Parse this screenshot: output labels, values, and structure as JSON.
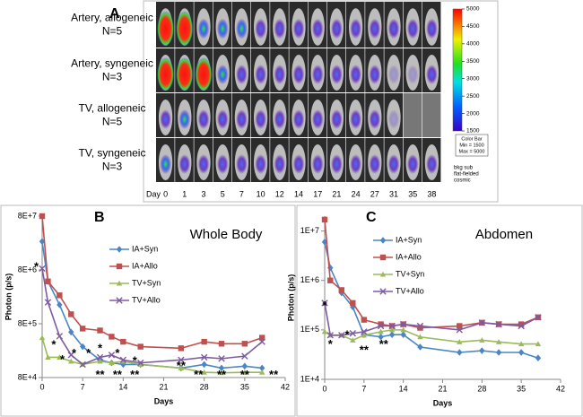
{
  "panel_a": {
    "label": "A",
    "rows": [
      {
        "lines": [
          "Artery, allogeneic",
          "N=5"
        ]
      },
      {
        "lines": [
          "Artery, syngeneic",
          "N=3"
        ]
      },
      {
        "lines": [
          "TV, allogeneic",
          "N=5"
        ]
      },
      {
        "lines": [
          "TV, syngeneic",
          "N=3"
        ]
      }
    ],
    "day_label": "Day",
    "days": [
      0,
      1,
      3,
      5,
      7,
      10,
      12,
      14,
      17,
      21,
      24,
      27,
      31,
      35,
      38
    ],
    "colorbar": {
      "lim": [
        1500,
        5000
      ],
      "ticks": [
        5000,
        4500,
        4000,
        3500,
        3000,
        2500,
        2000,
        1500
      ],
      "box_lines": [
        "Color Bar",
        "Min = 1500",
        "Max = 5000"
      ],
      "notes": [
        "bkg sub",
        "flat-fielded",
        "cosmic"
      ]
    }
  },
  "chart_data": [
    {
      "type": "line",
      "panel": "B",
      "title": "Whole Body",
      "xlabel": "Days",
      "ylabel": "Photon (p/s)",
      "log_y": true,
      "legend": "upper-center",
      "x": [
        0,
        1,
        3,
        5,
        7,
        10,
        12,
        14,
        17,
        24,
        28,
        31,
        35,
        38
      ],
      "xlim": [
        0,
        42
      ],
      "xticks": [
        0,
        7,
        14,
        21,
        28,
        35,
        42
      ],
      "ylim": [
        80000,
        80000000
      ],
      "yticks": [
        {
          "value": 80000,
          "label": "8E+4"
        },
        {
          "value": 800000,
          "label": "8E+5"
        },
        {
          "value": 8000000,
          "label": "8E+6"
        },
        {
          "value": 80000000,
          "label": "8E+7"
        }
      ],
      "series": [
        {
          "name": "IA+Syn",
          "color": "#4a86c5",
          "marker": "diamond",
          "values": [
            27000000,
            4900000,
            1800000,
            560000,
            300000,
            170000,
            150000,
            140000,
            140000,
            120000,
            140000,
            120000,
            130000,
            120000
          ]
        },
        {
          "name": "IA+Allo",
          "color": "#c0504d",
          "marker": "square",
          "values": [
            80000000,
            4900000,
            2700000,
            1200000,
            650000,
            600000,
            460000,
            370000,
            300000,
            280000,
            370000,
            340000,
            340000,
            440000
          ]
        },
        {
          "name": "TV+Syn",
          "color": "#9bbb59",
          "marker": "triangle",
          "values": [
            440000,
            190000,
            190000,
            160000,
            140000,
            160000,
            150000,
            160000,
            140000,
            120000,
            100000,
            98000,
            100000,
            100000
          ]
        },
        {
          "name": "TV+Allo",
          "color": "#7e5ba0",
          "marker": "x",
          "values": [
            8500000,
            2000000,
            470000,
            210000,
            140000,
            190000,
            210000,
            170000,
            150000,
            170000,
            190000,
            180000,
            200000,
            370000
          ]
        }
      ],
      "annotations": [
        {
          "text": "*",
          "x": -1,
          "y": 9000000
        },
        {
          "text": "*",
          "x": 2,
          "y": 320000
        },
        {
          "text": "*",
          "x": 3.5,
          "y": 170000
        },
        {
          "text": "*",
          "x": 5.5,
          "y": 220000
        },
        {
          "text": "*",
          "x": 8,
          "y": 220000
        },
        {
          "text": "*",
          "x": 10,
          "y": 270000
        },
        {
          "text": "*",
          "x": 13,
          "y": 220000
        },
        {
          "text": "*",
          "x": 16,
          "y": 160000
        },
        {
          "text": "**",
          "x": 10,
          "y": 88000
        },
        {
          "text": "**",
          "x": 13,
          "y": 88000
        },
        {
          "text": "**",
          "x": 16,
          "y": 88000
        },
        {
          "text": "**",
          "x": 24,
          "y": 130000
        },
        {
          "text": "**",
          "x": 27,
          "y": 88000
        },
        {
          "text": "**",
          "x": 31,
          "y": 88000
        },
        {
          "text": "**",
          "x": 35,
          "y": 88000
        },
        {
          "text": "**",
          "x": 40,
          "y": 88000
        }
      ]
    },
    {
      "type": "line",
      "panel": "C",
      "title": "Abdomen",
      "xlabel": "Days",
      "ylabel": "Photon (p/s)",
      "log_y": true,
      "legend": "upper-center",
      "x": [
        0,
        1,
        3,
        5,
        7,
        10,
        12,
        14,
        17,
        24,
        28,
        31,
        35,
        38
      ],
      "xlim": [
        0,
        42
      ],
      "xticks": [
        0,
        7,
        14,
        21,
        28,
        35,
        42
      ],
      "ylim": [
        10000,
        20000000
      ],
      "yticks": [
        {
          "value": 10000,
          "label": "1E+4"
        },
        {
          "value": 100000,
          "label": "1E+5"
        },
        {
          "value": 1000000,
          "label": "1E+6"
        },
        {
          "value": 10000000,
          "label": "1E+7"
        }
      ],
      "series": [
        {
          "name": "IA+Syn",
          "color": "#4a86c5",
          "marker": "diamond",
          "values": [
            6000000,
            1800000,
            560000,
            290000,
            80000,
            72000,
            80000,
            80000,
            45000,
            35000,
            38000,
            35000,
            35000,
            27000
          ]
        },
        {
          "name": "IA+Allo",
          "color": "#c0504d",
          "marker": "square",
          "values": [
            17000000,
            1000000,
            640000,
            350000,
            160000,
            130000,
            120000,
            130000,
            110000,
            120000,
            140000,
            130000,
            130000,
            180000
          ]
        },
        {
          "name": "TV+Syn",
          "color": "#9bbb59",
          "marker": "triangle",
          "values": [
            92000,
            78000,
            78000,
            62000,
            78000,
            92000,
            100000,
            100000,
            72000,
            57000,
            62000,
            57000,
            52000,
            52000
          ]
        },
        {
          "name": "TV+Allo",
          "color": "#7e5ba0",
          "marker": "x",
          "values": [
            350000,
            78000,
            78000,
            85000,
            92000,
            120000,
            120000,
            130000,
            120000,
            100000,
            140000,
            130000,
            120000,
            180000
          ]
        }
      ],
      "annotations": [
        {
          "text": "*",
          "x": 0,
          "y": 300000
        },
        {
          "text": "*",
          "x": 1,
          "y": 50000
        },
        {
          "text": "*",
          "x": 4,
          "y": 78000
        },
        {
          "text": "**",
          "x": 7,
          "y": 38000
        },
        {
          "text": "**",
          "x": 10.5,
          "y": 50000
        }
      ]
    }
  ]
}
